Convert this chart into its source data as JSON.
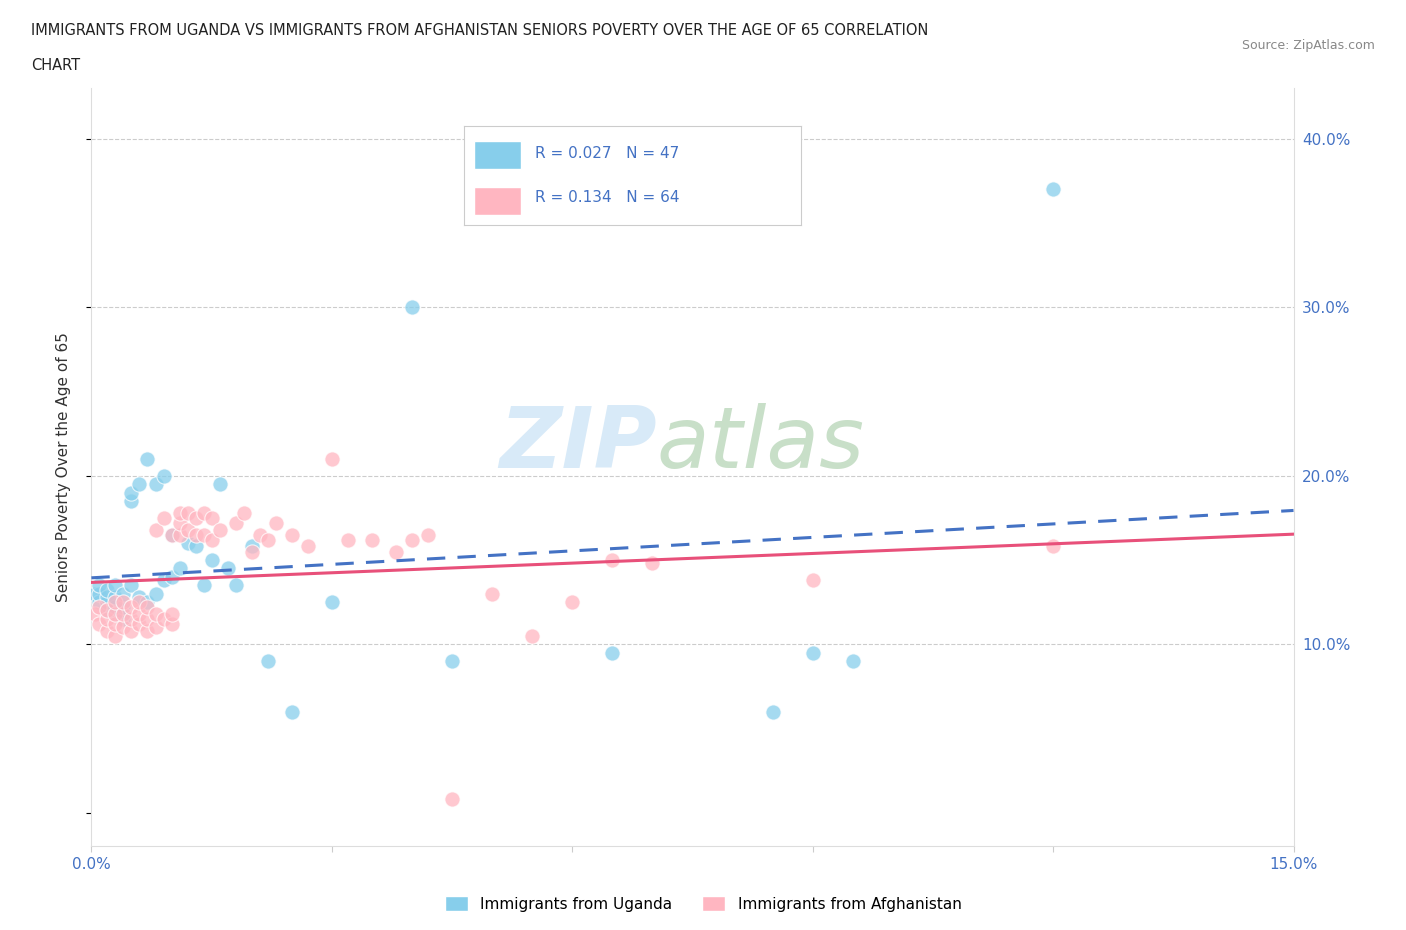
{
  "title_line1": "IMMIGRANTS FROM UGANDA VS IMMIGRANTS FROM AFGHANISTAN SENIORS POVERTY OVER THE AGE OF 65 CORRELATION",
  "title_line2": "CHART",
  "source": "Source: ZipAtlas.com",
  "ylabel": "Seniors Poverty Over the Age of 65",
  "xlim": [
    0.0,
    0.15
  ],
  "ylim": [
    -0.02,
    0.43
  ],
  "legend_R_uganda": "0.027",
  "legend_N_uganda": "47",
  "legend_R_afghan": "0.134",
  "legend_N_afghan": "64",
  "color_uganda": "#87CEEB",
  "color_afghan": "#FFB6C1",
  "line_color_uganda": "#4472C4",
  "line_color_afghan": "#E8507A",
  "uganda_x": [
    0.0005,
    0.001,
    0.001,
    0.001,
    0.002,
    0.002,
    0.002,
    0.002,
    0.003,
    0.003,
    0.003,
    0.003,
    0.004,
    0.004,
    0.004,
    0.005,
    0.005,
    0.005,
    0.006,
    0.006,
    0.007,
    0.007,
    0.008,
    0.008,
    0.009,
    0.009,
    0.01,
    0.01,
    0.011,
    0.012,
    0.013,
    0.014,
    0.015,
    0.016,
    0.017,
    0.018,
    0.02,
    0.022,
    0.025,
    0.03,
    0.04,
    0.045,
    0.065,
    0.085,
    0.09,
    0.095,
    0.12
  ],
  "uganda_y": [
    0.13,
    0.125,
    0.13,
    0.135,
    0.12,
    0.125,
    0.128,
    0.132,
    0.118,
    0.122,
    0.128,
    0.135,
    0.115,
    0.122,
    0.13,
    0.135,
    0.185,
    0.19,
    0.128,
    0.195,
    0.125,
    0.21,
    0.13,
    0.195,
    0.138,
    0.2,
    0.14,
    0.165,
    0.145,
    0.16,
    0.158,
    0.135,
    0.15,
    0.195,
    0.145,
    0.135,
    0.158,
    0.09,
    0.06,
    0.125,
    0.3,
    0.09,
    0.095,
    0.06,
    0.095,
    0.09,
    0.37
  ],
  "afghan_x": [
    0.0005,
    0.001,
    0.001,
    0.002,
    0.002,
    0.002,
    0.003,
    0.003,
    0.003,
    0.003,
    0.004,
    0.004,
    0.004,
    0.005,
    0.005,
    0.005,
    0.006,
    0.006,
    0.006,
    0.007,
    0.007,
    0.007,
    0.008,
    0.008,
    0.008,
    0.009,
    0.009,
    0.01,
    0.01,
    0.01,
    0.011,
    0.011,
    0.011,
    0.012,
    0.012,
    0.013,
    0.013,
    0.014,
    0.014,
    0.015,
    0.015,
    0.016,
    0.018,
    0.019,
    0.02,
    0.021,
    0.022,
    0.023,
    0.025,
    0.027,
    0.03,
    0.032,
    0.035,
    0.038,
    0.04,
    0.042,
    0.045,
    0.05,
    0.055,
    0.06,
    0.065,
    0.07,
    0.09,
    0.12
  ],
  "afghan_y": [
    0.118,
    0.112,
    0.122,
    0.108,
    0.115,
    0.12,
    0.105,
    0.112,
    0.118,
    0.125,
    0.11,
    0.118,
    0.125,
    0.108,
    0.115,
    0.122,
    0.112,
    0.118,
    0.125,
    0.108,
    0.115,
    0.122,
    0.11,
    0.118,
    0.168,
    0.115,
    0.175,
    0.112,
    0.118,
    0.165,
    0.165,
    0.172,
    0.178,
    0.168,
    0.178,
    0.165,
    0.175,
    0.165,
    0.178,
    0.162,
    0.175,
    0.168,
    0.172,
    0.178,
    0.155,
    0.165,
    0.162,
    0.172,
    0.165,
    0.158,
    0.21,
    0.162,
    0.162,
    0.155,
    0.162,
    0.165,
    0.008,
    0.13,
    0.105,
    0.125,
    0.15,
    0.148,
    0.138,
    0.158
  ]
}
